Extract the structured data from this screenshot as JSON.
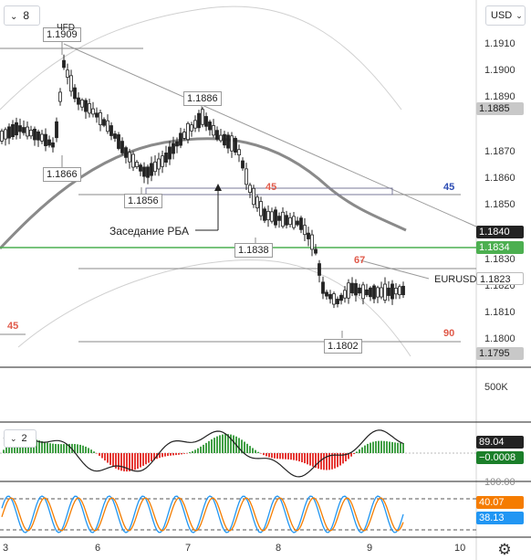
{
  "toolbar": {
    "interval_label": "8",
    "currency_label": "USD"
  },
  "price_axis": {
    "ticks": [
      "1.1910",
      "1.1900",
      "1.1890",
      "1.1870",
      "1.1860",
      "1.1850",
      "1.1830",
      "1.1820",
      "1.1810",
      "1.1800"
    ],
    "volume_label": "500K",
    "osc_label": "100.00"
  },
  "price_tags": [
    {
      "value": "1.1885",
      "bg": "#c8c8c8",
      "fg": "#222222"
    },
    {
      "value": "1.1840",
      "bg": "#222222",
      "fg": "#ffffff"
    },
    {
      "value": "1.1834",
      "bg": "#4caf50",
      "fg": "#ffffff"
    },
    {
      "value": "1.1823",
      "bg": "#ffffff",
      "fg": "#222222"
    },
    {
      "value": "1.1795",
      "bg": "#c8c8c8",
      "fg": "#222222"
    },
    {
      "value": "89.04",
      "bg": "#222222",
      "fg": "#ffffff"
    },
    {
      "value": "−0.0008",
      "bg": "#1b7f2a",
      "fg": "#ffffff"
    },
    {
      "value": "40.07",
      "bg": "#f57c00",
      "fg": "#ffffff"
    },
    {
      "value": "38.13",
      "bg": "#2196f3",
      "fg": "#ffffff"
    }
  ],
  "callouts": {
    "c1909": "1.1909",
    "c1886": "1.1886",
    "c1866": "1.1866",
    "c1856": "1.1856",
    "c1838": "1.1838",
    "c1802": "1.1802"
  },
  "annotations": {
    "rba_meeting": "Заседание РБА",
    "vfd": "ЧFD",
    "symbol": "EURUSD",
    "lvl45_right": "45",
    "lvl45_mid": "45",
    "lvl45_left": "45",
    "lvl67": "67",
    "lvl90": "90",
    "indicator_collapse": "2"
  },
  "x_axis": {
    "ticks": [
      "3",
      "6",
      "7",
      "8",
      "9",
      "10"
    ]
  },
  "colors": {
    "up": "#222222",
    "down": "#222222",
    "hline_green": "#4caf50",
    "hist_red": "#e53935",
    "hist_green": "#43a047",
    "stoch_orange": "#f57c00",
    "stoch_blue": "#2196f3"
  }
}
